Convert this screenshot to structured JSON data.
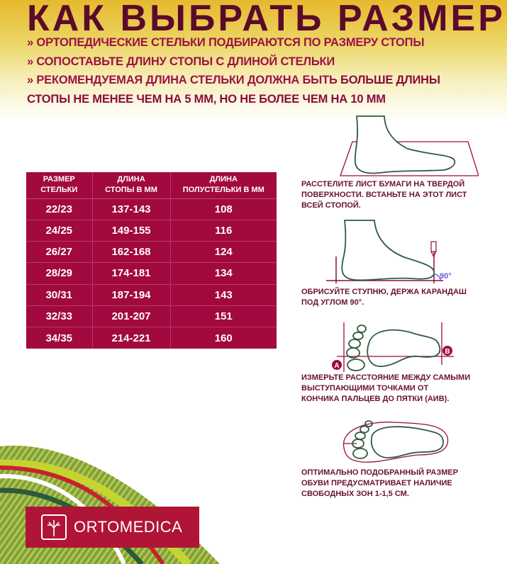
{
  "title": "КАК ВЫБРАТЬ РАЗМЕР?",
  "bullets": [
    "» ОРТОПЕДИЧЕСКИЕ СТЕЛЬКИ ПОДБИРАЮТСЯ ПО РАЗМЕРУ СТОПЫ",
    "» СОПОСТАВЬТЕ ДЛИНУ СТОПЫ С ДЛИНОЙ СТЕЛЬКИ",
    "» РЕКОМЕНДУЕМАЯ ДЛИНА СТЕЛЬКИ ДОЛЖНА БЫТЬ ",
    "БОЛЬШЕ ДЛИНЫ",
    "СТОПЫ НЕ МЕНЕЕ ЧЕМ НА 5 ММ, НО НЕ БОЛЕЕ ЧЕМ НА 10 ММ"
  ],
  "table": {
    "headers": [
      [
        "РАЗМЕР",
        "СТЕЛЬКИ"
      ],
      [
        "ДЛИНА",
        "СТОПЫ В ММ"
      ],
      [
        "ДЛИНА",
        "ПОЛУСТЕЛЬКИ В ММ"
      ]
    ],
    "rows": [
      [
        "22/23",
        "137-143",
        "108"
      ],
      [
        "24/25",
        "149-155",
        "116"
      ],
      [
        "26/27",
        "162-168",
        "124"
      ],
      [
        "28/29",
        "174-181",
        "134"
      ],
      [
        "30/31",
        "187-194",
        "143"
      ],
      [
        "32/33",
        "201-207",
        "151"
      ],
      [
        "34/35",
        "214-221",
        "160"
      ]
    ]
  },
  "steps": [
    [
      "РАССТЕЛИТЕ ЛИСТ БУМАГИ НА ТВЕРДОЙ",
      "ПОВЕРХНОСТИ. ВСТАНЬТЕ НА ЭТОТ ЛИСТ",
      "ВСЕЙ СТОПОЙ."
    ],
    [
      "ОБРИСУЙТЕ СТУПНЮ, ДЕРЖА КАРАНДАШ",
      "ПОД УГЛОМ 90°."
    ],
    [
      "ИЗМЕРЬТЕ РАССТОЯНИЕ МЕЖДУ САМЫМИ",
      "ВЫСТУПАЮЩИМИ ТОЧКАМИ ОТ",
      "КОНЧИКА ПАЛЬЦЕВ ДО ПЯТКИ (АИВ)."
    ],
    [
      "ОПТИМАЛЬНО ПОДОБРАННЫЙ РАЗМЕР",
      "ОБУВИ ПРЕДУСМАТРИВАЕТ НАЛИЧИЕ",
      "СВОБОДНЫХ ЗОН 1-1,5 СМ."
    ]
  ],
  "angle_label": "90°",
  "point_a": "A",
  "point_b": "B",
  "brand": "ORTOMEDICA",
  "colors": {
    "title": "#5a0b2b",
    "accent": "#a1093f",
    "logo_bg": "#b01437",
    "foot_line": "#2f5a3e"
  }
}
